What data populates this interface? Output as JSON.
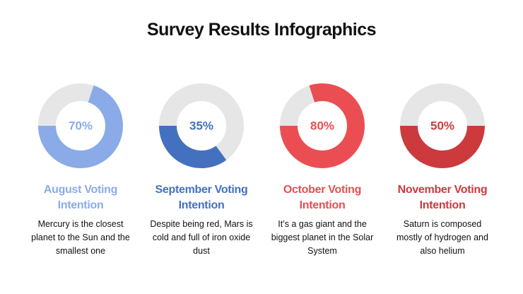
{
  "title": "Survey Results Infographics",
  "chart_data": [
    {
      "type": "donut",
      "title": "August Voting Intention",
      "description": "Mercury is the closest planet to the Sun and the smallest one",
      "values": [
        70
      ],
      "value_labels": [
        "70%"
      ],
      "color": "#8aabe8"
    },
    {
      "type": "donut",
      "title": "September Voting Intention",
      "description": "Despite being red, Mars is cold and full of iron oxide dust",
      "values": [
        35
      ],
      "value_labels": [
        "35%"
      ],
      "color": "#4470c0"
    },
    {
      "type": "donut",
      "title": "October Voting Intention",
      "description": "It’s a gas giant and the biggest planet in the Solar System",
      "values": [
        80
      ],
      "value_labels": [
        "80%"
      ],
      "color": "#eb4e52"
    },
    {
      "type": "donut",
      "title": "November Voting Intention",
      "description": "Saturn is composed mostly of hydrogen and also helium",
      "values": [
        50
      ],
      "value_labels": [
        "50%"
      ],
      "color": "#cc3a3e"
    }
  ]
}
